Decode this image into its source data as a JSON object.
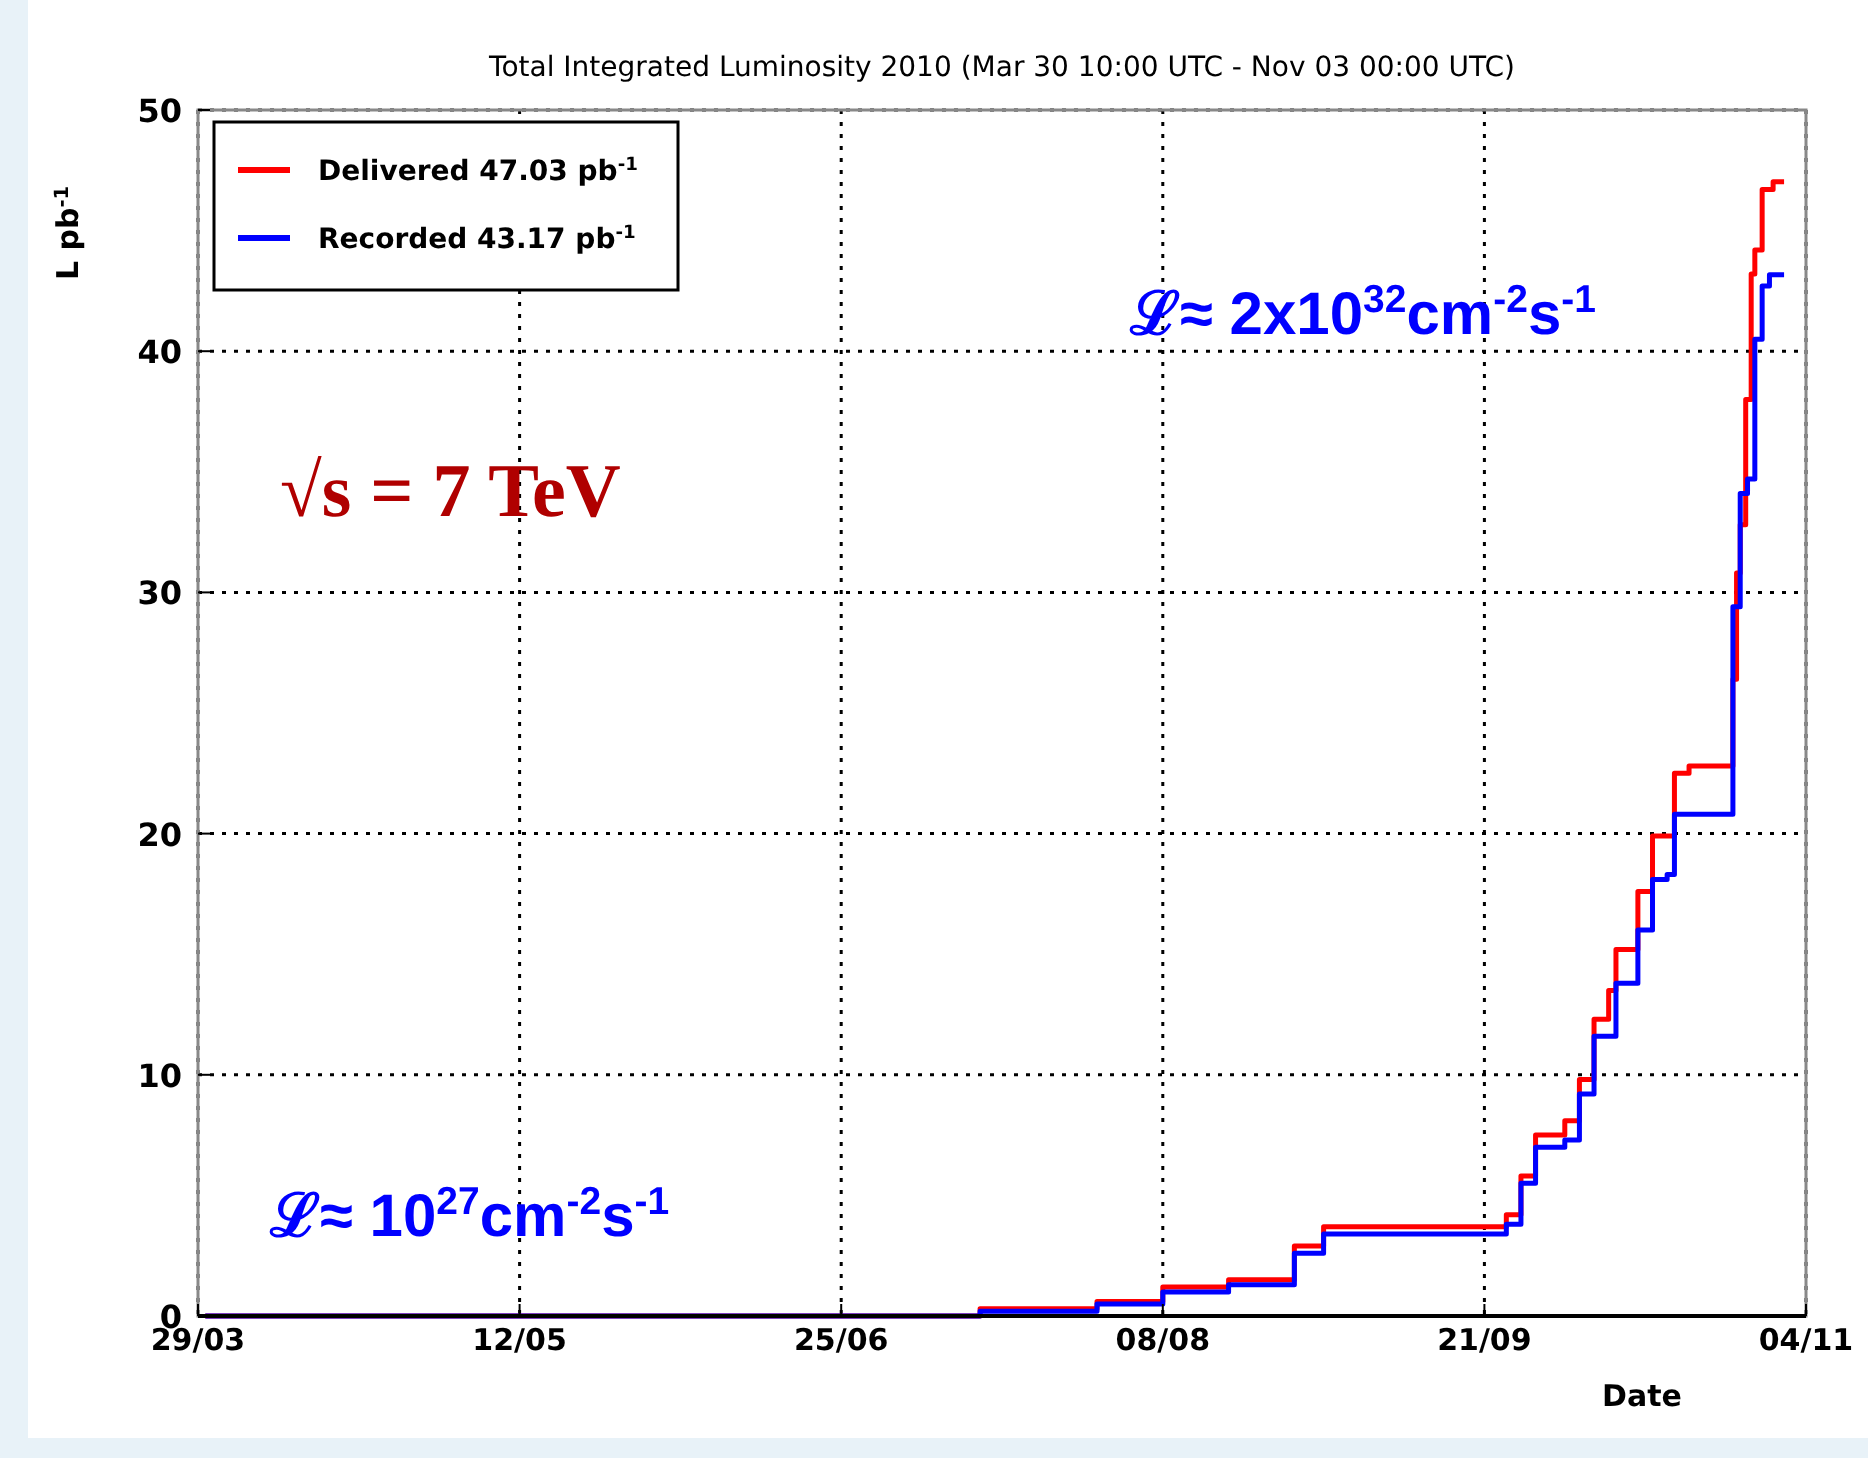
{
  "chart_data": {
    "type": "step",
    "title": "Total Integrated Luminosity 2010 (Mar 30 10:00 UTC - Nov 03 00:00 UTC)",
    "xlabel": "Date",
    "ylabel": "L pb$^{-1}$",
    "xlim": [
      "2010-03-29",
      "2010-11-04"
    ],
    "xticks": [
      {
        "value": "2010-03-29",
        "label": "29/03"
      },
      {
        "value": "2010-05-12",
        "label": "12/05"
      },
      {
        "value": "2010-06-25",
        "label": "25/06"
      },
      {
        "value": "2010-08-08",
        "label": "08/08"
      },
      {
        "value": "2010-09-21",
        "label": "21/09"
      },
      {
        "value": "2010-11-04",
        "label": "04/11"
      }
    ],
    "ylim": [
      0,
      50
    ],
    "yticks": [
      0,
      10,
      20,
      30,
      40,
      50
    ],
    "grid": true,
    "legend": "top left",
    "series": [
      {
        "name": "Delivered 47.03 pb$^{-1}$",
        "color": "#ff0000",
        "x": [
          "2010-03-30",
          "2010-07-14",
          "2010-07-30",
          "2010-08-08",
          "2010-08-17",
          "2010-08-26",
          "2010-08-30",
          "2010-09-24",
          "2010-09-26",
          "2010-09-28",
          "2010-10-02",
          "2010-10-04",
          "2010-10-06",
          "2010-10-08",
          "2010-10-09",
          "2010-10-12",
          "2010-10-14",
          "2010-10-17",
          "2010-10-19",
          "2010-10-25T00:00",
          "2010-10-25T12:00",
          "2010-10-26T00:00",
          "2010-10-26T18:00",
          "2010-10-27T12:00",
          "2010-10-28T00:00",
          "2010-10-29T00:00",
          "2010-10-30T12:00",
          "2010-11-01T00:00"
        ],
        "values": [
          0,
          0.3,
          0.6,
          1.2,
          1.5,
          2.9,
          3.7,
          4.2,
          5.8,
          7.5,
          8.1,
          9.8,
          12.3,
          13.5,
          15.2,
          17.6,
          19.9,
          22.5,
          22.8,
          26.4,
          30.8,
          32.8,
          38,
          43.2,
          44.2,
          46.7,
          47.03,
          47.03
        ]
      },
      {
        "name": "Recorded 43.17 pb$^{-1}$",
        "color": "#0000ff",
        "x": [
          "2010-03-30",
          "2010-07-14",
          "2010-07-30",
          "2010-08-08",
          "2010-08-17",
          "2010-08-26",
          "2010-08-30",
          "2010-09-24",
          "2010-09-26",
          "2010-09-28",
          "2010-10-02",
          "2010-10-04",
          "2010-10-06",
          "2010-10-09",
          "2010-10-12",
          "2010-10-14",
          "2010-10-16",
          "2010-10-17",
          "2010-10-25T00:00",
          "2010-10-26T00:00",
          "2010-10-27T00:00",
          "2010-10-28T00:00",
          "2010-10-29T00:00",
          "2010-10-30T00:00",
          "2010-11-01T00:00"
        ],
        "values": [
          0,
          0.2,
          0.5,
          1.0,
          1.3,
          2.6,
          3.4,
          3.8,
          5.5,
          7.0,
          7.3,
          9.2,
          11.6,
          13.8,
          16.0,
          18.1,
          18.3,
          20.8,
          29.4,
          34.1,
          34.7,
          40.5,
          42.7,
          43.17,
          43.17
        ]
      }
    ],
    "annotations": [
      "√s = 7 TeV",
      "ℒ≈ 2x10$^{32}$cm$^{-2}$s$^{-1}$",
      "ℒ≈ 10$^{27}$cm$^{-2}$s$^{-1}$"
    ]
  }
}
